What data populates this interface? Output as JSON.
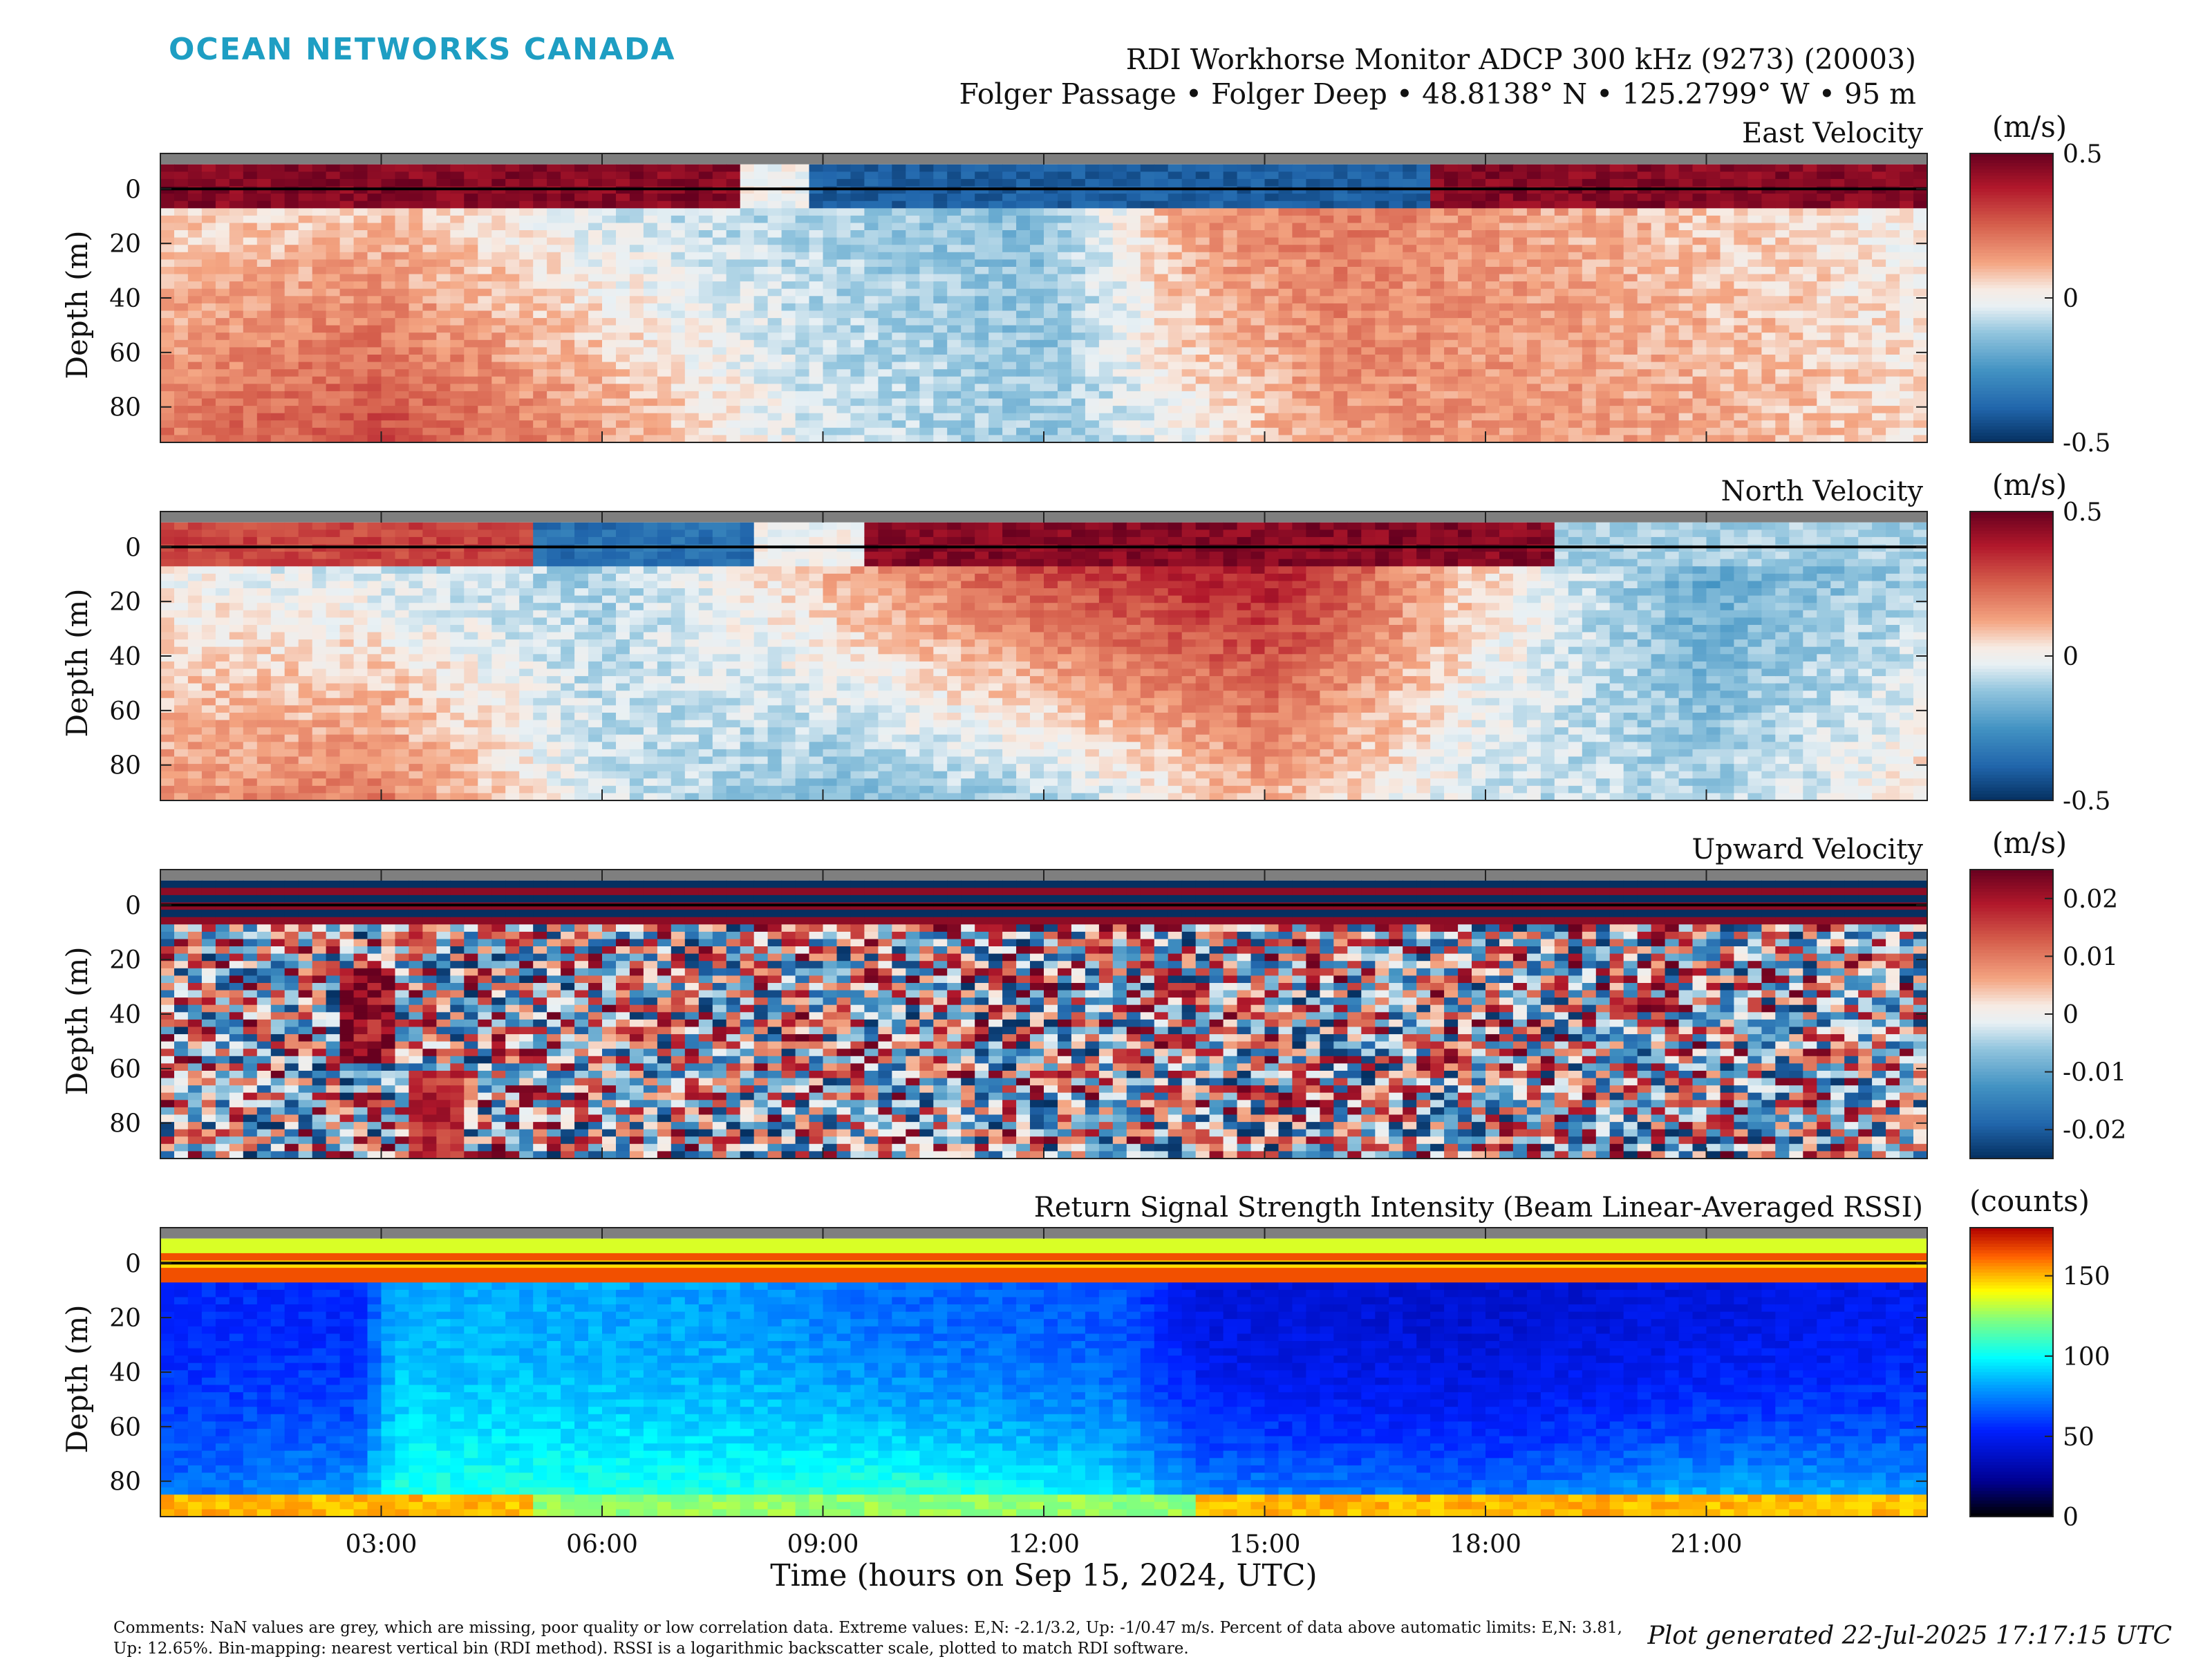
{
  "brand": "OCEAN NETWORKS CANADA",
  "header": {
    "title": "RDI Workhorse Monitor ADCP 300 kHz (9273) (20003)",
    "subtitle": "Folger Passage • Folger Deep • 48.8138° N • 125.2799° W • 95 m"
  },
  "footer": {
    "comments": "Comments: NaN values are grey, which are missing, poor quality or low correlation data. Extreme values: E,N: -2.1/3.2, Up: -1/0.47 m/s. Percent of data above automatic limits: E,N: 3.81, Up: 12.65%. Bin-mapping: nearest vertical bin (RDI method). RSSI is a logarithmic backscatter scale, plotted to match RDI software.",
    "generated": "Plot generated 22-Jul-2025 17:17:15 UTC"
  },
  "colors": {
    "brand": "#1e9ec3",
    "nan_grey": "#7f7f7f",
    "diverging_pos": "#67001f",
    "diverging_neg": "#053061"
  },
  "chart_data": [
    {
      "type": "heatmap",
      "title": "East Velocity",
      "ylabel": "Depth (m)",
      "xlabel": "",
      "x_ticks": [
        "03:00",
        "06:00",
        "09:00",
        "12:00",
        "15:00",
        "18:00",
        "21:00"
      ],
      "y_ticks": [
        0,
        20,
        40,
        60,
        80
      ],
      "xlim_hours": [
        0,
        24
      ],
      "ylim": [
        -13,
        93
      ],
      "colorbar": {
        "label": "(m/s)",
        "ticks": [
          0.5,
          0,
          -0.5
        ],
        "range": [
          -0.5,
          0.5
        ],
        "colormap": "diverging red-blue"
      },
      "pattern": {
        "surface_band": [
          {
            "from": 0,
            "to": 7.8,
            "value": 0.45
          },
          {
            "from": 8.8,
            "to": 17.3,
            "value": -0.4
          },
          {
            "from": 17.3,
            "to": 24,
            "value": 0.45
          }
        ],
        "interior": [
          {
            "t": 0,
            "shallow": 0.05,
            "deep": 0.2
          },
          {
            "t": 3,
            "shallow": 0.08,
            "deep": 0.3
          },
          {
            "t": 6,
            "shallow": -0.05,
            "deep": 0.15
          },
          {
            "t": 9,
            "shallow": -0.1,
            "deep": -0.05
          },
          {
            "t": 12,
            "shallow": -0.15,
            "deep": -0.12
          },
          {
            "t": 14,
            "shallow": 0.15,
            "deep": 0.0
          },
          {
            "t": 16,
            "shallow": 0.2,
            "deep": 0.15
          },
          {
            "t": 19,
            "shallow": 0.12,
            "deep": 0.15
          },
          {
            "t": 22,
            "shallow": 0.05,
            "deep": 0.1
          },
          {
            "t": 24,
            "shallow": 0.0,
            "deep": 0.05
          }
        ]
      }
    },
    {
      "type": "heatmap",
      "title": "North Velocity",
      "ylabel": "Depth (m)",
      "xlabel": "",
      "x_ticks": [
        "03:00",
        "06:00",
        "09:00",
        "12:00",
        "15:00",
        "18:00",
        "21:00"
      ],
      "y_ticks": [
        0,
        20,
        40,
        60,
        80
      ],
      "xlim_hours": [
        0,
        24
      ],
      "ylim": [
        -13,
        93
      ],
      "colorbar": {
        "label": "(m/s)",
        "ticks": [
          0.5,
          0,
          -0.5
        ],
        "range": [
          -0.5,
          0.5
        ],
        "colormap": "diverging red-blue"
      },
      "pattern": {
        "surface_band": [
          {
            "from": 0,
            "to": 5,
            "value": 0.3
          },
          {
            "from": 5,
            "to": 8,
            "value": -0.35
          },
          {
            "from": 9.5,
            "to": 19,
            "value": 0.45
          },
          {
            "from": 19,
            "to": 24,
            "value": -0.1
          }
        ],
        "interior": [
          {
            "t": 0,
            "shallow": 0.0,
            "deep": 0.15
          },
          {
            "t": 3,
            "shallow": -0.05,
            "deep": 0.2
          },
          {
            "t": 6,
            "shallow": -0.1,
            "deep": -0.05
          },
          {
            "t": 9,
            "shallow": 0.1,
            "deep": -0.15
          },
          {
            "t": 12,
            "shallow": 0.3,
            "deep": -0.1
          },
          {
            "t": 15,
            "shallow": 0.4,
            "deep": 0.1
          },
          {
            "t": 18,
            "shallow": 0.05,
            "deep": -0.05
          },
          {
            "t": 21,
            "shallow": -0.2,
            "deep": -0.1
          },
          {
            "t": 24,
            "shallow": -0.1,
            "deep": 0.05
          }
        ]
      }
    },
    {
      "type": "heatmap",
      "title": "Upward Velocity",
      "ylabel": "Depth (m)",
      "xlabel": "",
      "x_ticks": [
        "03:00",
        "06:00",
        "09:00",
        "12:00",
        "15:00",
        "18:00",
        "21:00"
      ],
      "y_ticks": [
        0,
        20,
        40,
        60,
        80
      ],
      "xlim_hours": [
        0,
        24
      ],
      "ylim": [
        -13,
        93
      ],
      "colorbar": {
        "label": "(m/s)",
        "ticks": [
          0.02,
          0.01,
          0,
          -0.01,
          -0.02
        ],
        "range": [
          -0.025,
          0.025
        ],
        "colormap": "diverging red-blue"
      },
      "pattern": {
        "noisy": true,
        "hotspots": [
          {
            "t": 2.8,
            "d": 40,
            "value": 0.025
          },
          {
            "t": 3.8,
            "d": 80,
            "value": 0.02
          }
        ]
      }
    },
    {
      "type": "heatmap",
      "title": "Return Signal Strength Intensity (Beam Linear-Averaged RSSI)",
      "ylabel": "Depth (m)",
      "xlabel": "Time (hours on Sep 15, 2024, UTC)",
      "x_ticks": [
        "03:00",
        "06:00",
        "09:00",
        "12:00",
        "15:00",
        "18:00",
        "21:00"
      ],
      "y_ticks": [
        0,
        20,
        40,
        60,
        80
      ],
      "xlim_hours": [
        0,
        24
      ],
      "ylim": [
        -13,
        93
      ],
      "colorbar": {
        "label": "(counts)",
        "ticks": [
          150,
          100,
          50,
          0
        ],
        "range": [
          0,
          180
        ],
        "colormap": "jet"
      },
      "pattern": {
        "surface_band_value": 165,
        "bottom_value": 150,
        "interior": [
          {
            "t": 0,
            "shallow": 55,
            "deep": 70
          },
          {
            "t": 2.7,
            "shallow": 55,
            "deep": 80
          },
          {
            "t": 3.2,
            "shallow": 85,
            "deep": 105
          },
          {
            "t": 8,
            "shallow": 80,
            "deep": 105
          },
          {
            "t": 10,
            "shallow": 70,
            "deep": 110
          },
          {
            "t": 13,
            "shallow": 65,
            "deep": 95
          },
          {
            "t": 14.2,
            "shallow": 45,
            "deep": 75
          },
          {
            "t": 18,
            "shallow": 40,
            "deep": 70
          },
          {
            "t": 21,
            "shallow": 45,
            "deep": 85
          },
          {
            "t": 24,
            "shallow": 50,
            "deep": 80
          }
        ]
      }
    }
  ]
}
